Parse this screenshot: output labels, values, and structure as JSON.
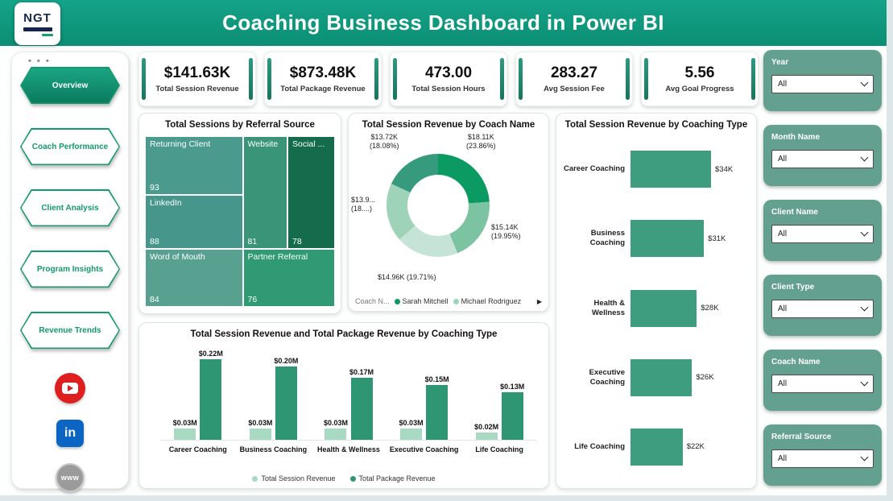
{
  "header": {
    "title": "Coaching Business Dashboard in Power BI",
    "logo_text": "NGT"
  },
  "sidebar": {
    "dots": "• • •",
    "items": [
      {
        "label": "Overview",
        "active": true
      },
      {
        "label": "Coach Performance",
        "active": false
      },
      {
        "label": "Client Analysis",
        "active": false
      },
      {
        "label": "Program Insights",
        "active": false
      },
      {
        "label": "Revenue Trends",
        "active": false
      }
    ],
    "social": [
      {
        "name": "youtube",
        "color": "#df1f1f",
        "text": ""
      },
      {
        "name": "linkedin",
        "color": "#0a66c2",
        "text": "in"
      },
      {
        "name": "website",
        "color": "#9b9b9b",
        "text": "www"
      }
    ]
  },
  "kpis": [
    {
      "value": "$141.63K",
      "label": "Total Session Revenue"
    },
    {
      "value": "$873.48K",
      "label": "Total Package Revenue"
    },
    {
      "value": "473.00",
      "label": "Total Session Hours"
    },
    {
      "value": "283.27",
      "label": "Avg Session Fee"
    },
    {
      "value": "5.56",
      "label": "Avg Goal Progress"
    }
  ],
  "filters": [
    {
      "label": "Year",
      "value": "All"
    },
    {
      "label": "Month Name",
      "value": "All"
    },
    {
      "label": "Client Name",
      "value": "All"
    },
    {
      "label": "Client Type",
      "value": "All"
    },
    {
      "label": "Coach Name",
      "value": "All"
    },
    {
      "label": "Referral Source",
      "value": "All"
    }
  ],
  "colors": {
    "header": "#0f9c82",
    "accent": "#2e9673",
    "light_series": "#a7d9c3",
    "dark_series": "#2e9673"
  },
  "chart_data": [
    {
      "type": "treemap",
      "title": "Total Sessions by Referral Source",
      "items": [
        {
          "label": "Returning Client",
          "value": 93,
          "color": "#4a9a8d"
        },
        {
          "label": "Website",
          "value": 81,
          "color": "#3a9478"
        },
        {
          "label": "Social ...",
          "value": 78,
          "color": "#156c4c"
        },
        {
          "label": "LinkedIn",
          "value": 88,
          "color": "#47968b"
        },
        {
          "label": "Word of Mouth",
          "value": 84,
          "color": "#58a191"
        },
        {
          "label": "Partner Referral",
          "value": 76,
          "color": "#2f9a74"
        }
      ]
    },
    {
      "type": "pie",
      "title": "Total Session Revenue by Coach Name",
      "slices": [
        {
          "label": "$18.11K\n(23.86%)",
          "value": 23.86,
          "color": "#0a9a62"
        },
        {
          "label": "$15.14K\n(19.95%)",
          "value": 19.95,
          "color": "#7cc3a2"
        },
        {
          "label": "$14.96K (19.71%)",
          "value": 19.71,
          "color": "#c5e3d6"
        },
        {
          "label": "$13.9...\n(18....)",
          "value": 18.4,
          "color": "#9ed3ba"
        },
        {
          "label": "$13.72K\n(18.08%)",
          "value": 18.08,
          "color": "#359b7c"
        }
      ],
      "legend_title": "Coach N...",
      "legend": [
        {
          "name": "Sarah Mitchell",
          "color": "#0a9a62"
        },
        {
          "name": "Michael Rodriguez",
          "color": "#9ed3ba"
        }
      ],
      "legend_more": "▶"
    },
    {
      "type": "bar",
      "orientation": "horizontal",
      "title": "Total Session Revenue by Coaching Type",
      "categories": [
        "Career Coaching",
        "Business Coaching",
        "Health & Wellness",
        "Executive Coaching",
        "Life Coaching"
      ],
      "values": [
        34,
        31,
        28,
        26,
        22
      ],
      "value_labels": [
        "$34K",
        "$31K",
        "$28K",
        "$26K",
        "$22K"
      ],
      "bar_color": "#3f9d7f"
    },
    {
      "type": "bar",
      "orientation": "vertical",
      "title": "Total Session Revenue and Total Package Revenue by Coaching Type",
      "categories": [
        "Career Coaching",
        "Business Coaching",
        "Health & Wellness",
        "Executive Coaching",
        "Life Coaching"
      ],
      "series": [
        {
          "name": "Total Session Revenue",
          "color": "#a7d9c3",
          "values": [
            0.03,
            0.03,
            0.03,
            0.03,
            0.02
          ],
          "value_labels": [
            "$0.03M",
            "$0.03M",
            "$0.03M",
            "$0.03M",
            "$0.02M"
          ]
        },
        {
          "name": "Total Package Revenue",
          "color": "#2e9673",
          "values": [
            0.22,
            0.2,
            0.17,
            0.15,
            0.13
          ],
          "value_labels": [
            "$0.22M",
            "$0.20M",
            "$0.17M",
            "$0.15M",
            "$0.13M"
          ]
        }
      ]
    }
  ]
}
